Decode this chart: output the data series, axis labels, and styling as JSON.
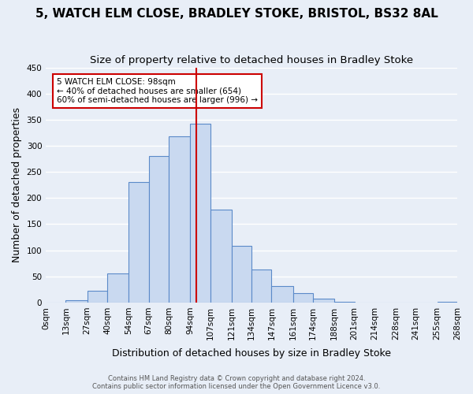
{
  "title": "5, WATCH ELM CLOSE, BRADLEY STOKE, BRISTOL, BS32 8AL",
  "subtitle": "Size of property relative to detached houses in Bradley Stoke",
  "xlabel": "Distribution of detached houses by size in Bradley Stoke",
  "ylabel": "Number of detached properties",
  "bin_labels": [
    "0sqm",
    "13sqm",
    "27sqm",
    "40sqm",
    "54sqm",
    "67sqm",
    "80sqm",
    "94sqm",
    "107sqm",
    "121sqm",
    "134sqm",
    "147sqm",
    "161sqm",
    "174sqm",
    "188sqm",
    "201sqm",
    "214sqm",
    "228sqm",
    "241sqm",
    "255sqm",
    "268sqm"
  ],
  "bin_edges": [
    0,
    13,
    27,
    40,
    54,
    67,
    80,
    94,
    107,
    121,
    134,
    147,
    161,
    174,
    188,
    201,
    214,
    228,
    241,
    255,
    268
  ],
  "bar_heights": [
    0,
    5,
    22,
    55,
    230,
    280,
    318,
    342,
    178,
    108,
    63,
    32,
    18,
    7,
    2,
    0,
    0,
    0,
    0,
    2
  ],
  "bar_color": "#c9d9f0",
  "bar_edge_color": "#5b8ac9",
  "vline_x": 98,
  "vline_color": "#cc0000",
  "annotation_text": "5 WATCH ELM CLOSE: 98sqm\n← 40% of detached houses are smaller (654)\n60% of semi-detached houses are larger (996) →",
  "annotation_box_edge": "#cc0000",
  "annotation_box_face": "#ffffff",
  "ylim": [
    0,
    450
  ],
  "yticks": [
    0,
    50,
    100,
    150,
    200,
    250,
    300,
    350,
    400,
    450
  ],
  "background_color": "#e8eef7",
  "grid_color": "#ffffff",
  "footer_line1": "Contains HM Land Registry data © Crown copyright and database right 2024.",
  "footer_line2": "Contains public sector information licensed under the Open Government Licence v3.0.",
  "title_fontsize": 11,
  "subtitle_fontsize": 9.5,
  "axis_label_fontsize": 9,
  "tick_fontsize": 7.5
}
